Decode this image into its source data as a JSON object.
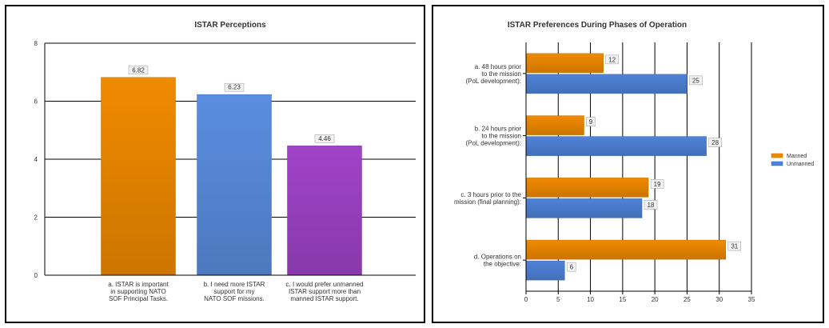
{
  "chart_data": [
    {
      "type": "bar",
      "title": "ISTAR Perceptions",
      "categories": [
        [
          "a. ISTAR is important",
          "in supporting NATO",
          "SOF Principal Tasks."
        ],
        [
          "b. I need more ISTAR",
          "support for my",
          "NATO SOF missions."
        ],
        [
          "c. I would prefer unmanned",
          "ISTAR support more than",
          "manned ISTAR support."
        ]
      ],
      "values": [
        6.82,
        6.23,
        4.46
      ],
      "value_labels": [
        "6.82",
        "6.23",
        "4.46"
      ],
      "colors": [
        "#f08a00",
        "#5a8de0",
        "#a043c8"
      ],
      "ylim": [
        0,
        8
      ],
      "yticks": [
        "0",
        "2",
        "4",
        "6",
        "8"
      ],
      "grid": true
    },
    {
      "type": "bar",
      "orientation": "horizontal",
      "title": "ISTAR Preferences During Phases of Operation",
      "categories": [
        [
          "a. 48 hours prior",
          "to the mission",
          "(PoL development):"
        ],
        [
          "b. 24 hours prior",
          "to the mission",
          "(PoL development):"
        ],
        [
          "c. 3 hours prior to the",
          "mission (final planning):"
        ],
        [
          "d. Operations on",
          "the objective:"
        ]
      ],
      "series": [
        {
          "name": "Manned",
          "values": [
            12,
            9,
            19,
            31
          ],
          "labels": [
            "12",
            "9",
            "19",
            "31"
          ],
          "color": "#f08a00"
        },
        {
          "name": "Unmanned",
          "values": [
            25,
            28,
            18,
            6
          ],
          "labels": [
            "25",
            "28",
            "18",
            "6"
          ],
          "color": "#4f82d9"
        }
      ],
      "xlim": [
        0,
        35
      ],
      "xticks": [
        "0",
        "5",
        "10",
        "15",
        "20",
        "25",
        "30",
        "35"
      ],
      "grid": true,
      "legend": "right"
    }
  ]
}
